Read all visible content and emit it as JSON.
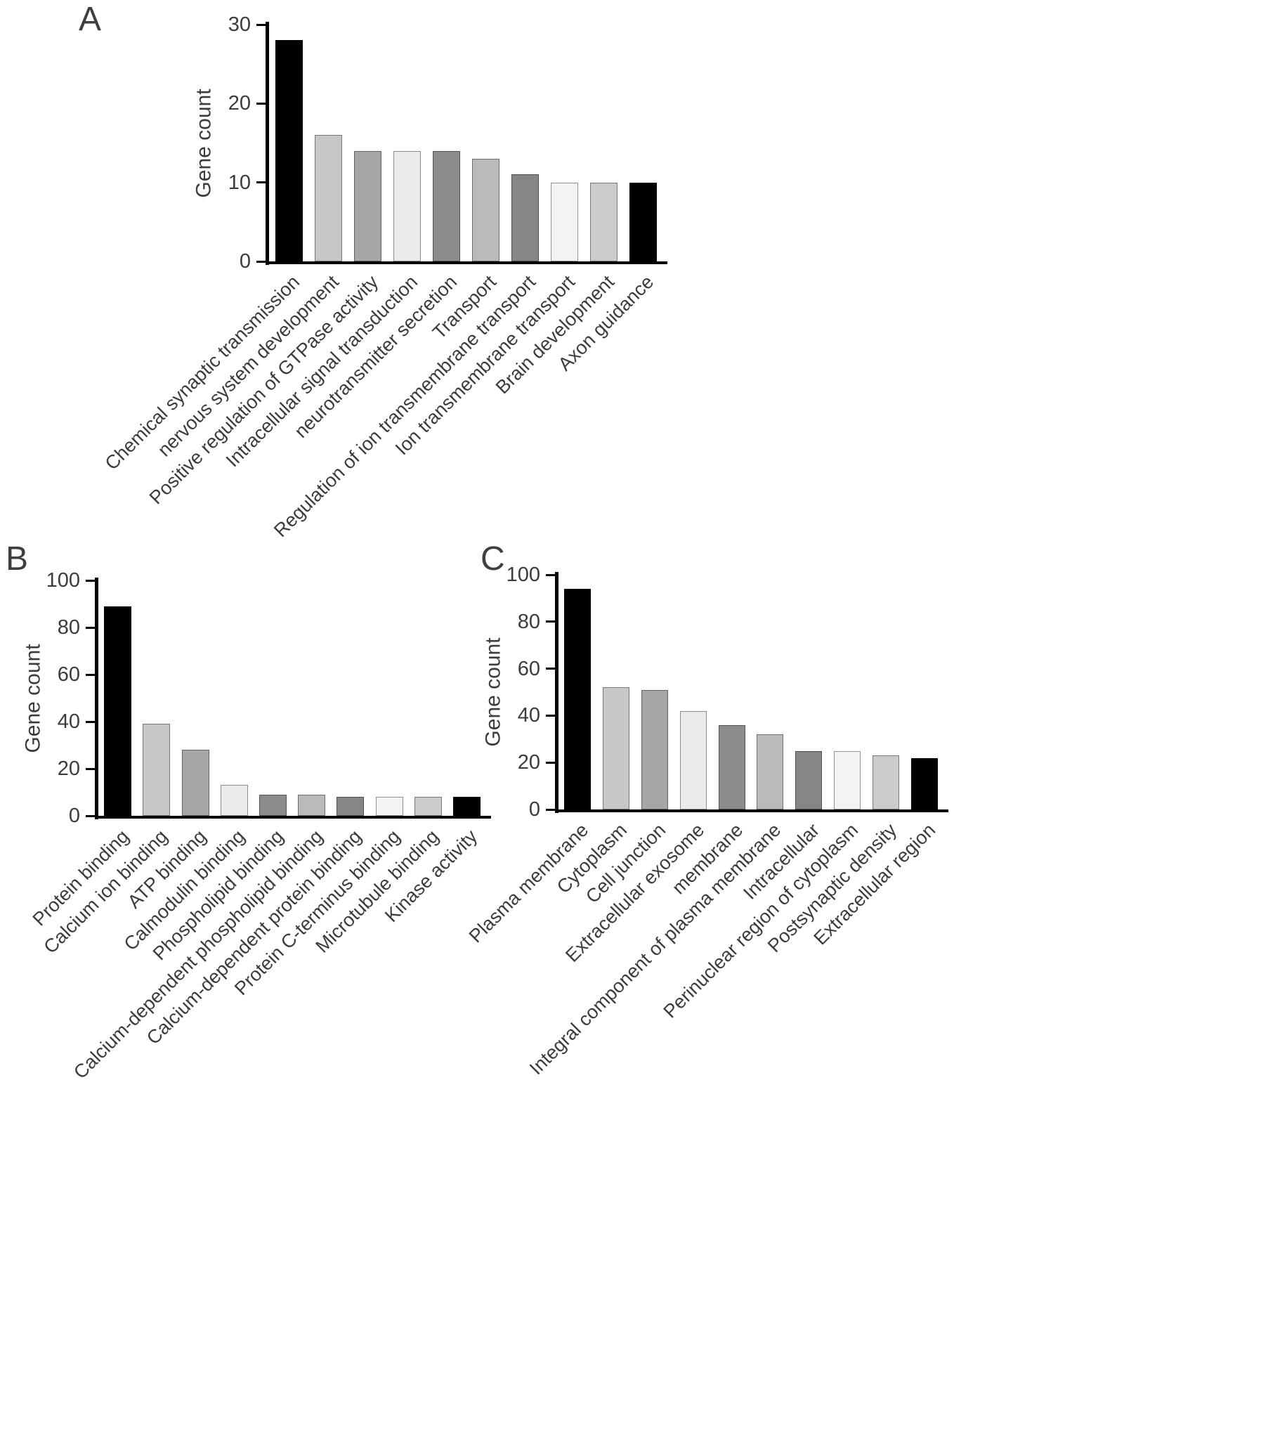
{
  "figure": {
    "background": "#ffffff",
    "text_color": "#3c3c3c",
    "axis_color": "#000000"
  },
  "chart_data": [
    {
      "panel_label": "A",
      "type": "bar",
      "title": "",
      "xlabel": "",
      "ylabel": "Gene count",
      "ylim": [
        0,
        30
      ],
      "yticks": [
        0,
        10,
        20,
        30
      ],
      "grid": false,
      "legend": "none",
      "categories": [
        "Chemical synaptic transmission",
        "nervous system development",
        "Positive regulation of GTPase activity",
        "Intracellular signal transduction",
        "neurotransmitter secretion",
        "Transport",
        "Regulation of ion transmembrane transport",
        "Ion transmembrane transport",
        "Brain development",
        "Axon guidance"
      ],
      "values": [
        28,
        16,
        14,
        14,
        14,
        13,
        11,
        10,
        10,
        10
      ],
      "bar_colors": [
        "#000000",
        "#c7c7c7",
        "#a6a6a6",
        "#ebebeb",
        "#8c8c8c",
        "#bababa",
        "#868686",
        "#f3f3f3",
        "#cbcbcb",
        "#000000"
      ]
    },
    {
      "panel_label": "B",
      "type": "bar",
      "title": "",
      "xlabel": "",
      "ylabel": "Gene count",
      "ylim": [
        0,
        100
      ],
      "yticks": [
        0,
        20,
        40,
        60,
        80,
        100
      ],
      "grid": false,
      "legend": "none",
      "categories": [
        "Protein binding",
        "Calcium ion binding",
        "ATP binding",
        "Calmodulin binding",
        "Phospholipid binding",
        "Calcium-dependent phospholipid binding",
        "Calcium-dependent protein binding",
        "Protein C-terminus binding",
        "Microtubule binding",
        "Kinase activity"
      ],
      "values": [
        89,
        39,
        28,
        13,
        9,
        9,
        8,
        8,
        8,
        8
      ],
      "bar_colors": [
        "#000000",
        "#c7c7c7",
        "#a6a6a6",
        "#ebebeb",
        "#8c8c8c",
        "#bababa",
        "#868686",
        "#f3f3f3",
        "#cbcbcb",
        "#000000"
      ]
    },
    {
      "panel_label": "C",
      "type": "bar",
      "title": "",
      "xlabel": "",
      "ylabel": "Gene count",
      "ylim": [
        0,
        100
      ],
      "yticks": [
        0,
        20,
        40,
        60,
        80,
        100
      ],
      "grid": false,
      "legend": "none",
      "categories": [
        "Plasma membrane",
        "Cytoplasm",
        "Cell junction",
        "Extracellular exosome",
        "membrane",
        "Integral component of plasma membrane",
        "Intracellular",
        "Perinuclear region of cytoplasm",
        "Postsynaptic density",
        "Extracellular region"
      ],
      "values": [
        94,
        52,
        51,
        42,
        36,
        32,
        25,
        25,
        23,
        22
      ],
      "bar_colors": [
        "#000000",
        "#c7c7c7",
        "#a6a6a6",
        "#ebebeb",
        "#8c8c8c",
        "#bababa",
        "#868686",
        "#f3f3f3",
        "#cbcbcb",
        "#000000"
      ]
    }
  ]
}
